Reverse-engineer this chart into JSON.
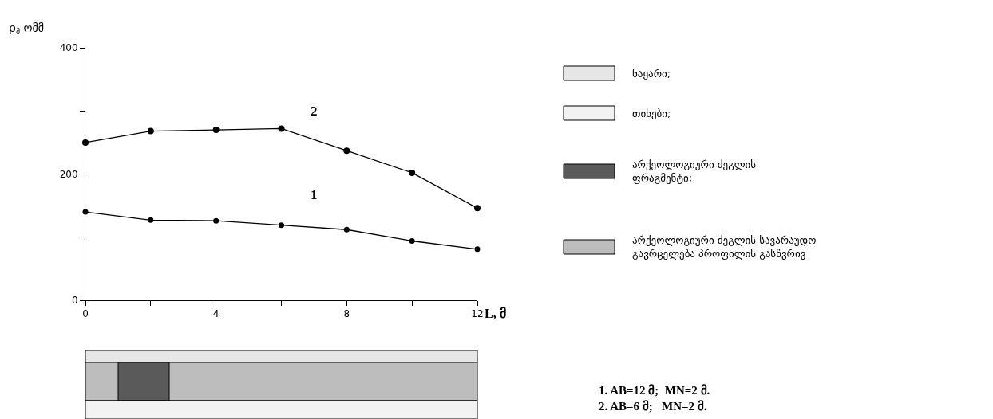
{
  "chart_data": {
    "type": "line",
    "ylabel": "ρ$_{მ}$ ომმ",
    "xlabel": "L, მ",
    "x": [
      0,
      2,
      4,
      6,
      8,
      10,
      12
    ],
    "series": [
      {
        "name": "1",
        "color": "#000000",
        "values": [
          140,
          127,
          126,
          119,
          112,
          94,
          81
        ]
      },
      {
        "name": "2",
        "color": "#000000",
        "values": [
          250,
          268,
          270,
          272,
          237,
          202,
          146
        ]
      }
    ],
    "xlim": [
      0,
      12
    ],
    "xticks": [
      0,
      {
        "value": 2,
        "label": null
      },
      4,
      {
        "value": 6,
        "label": null
      },
      8,
      {
        "value": 10,
        "label": null
      },
      12
    ],
    "ylim": [
      0,
      400
    ],
    "yticks": [
      0,
      {
        "value": 100,
        "label": null
      },
      200,
      {
        "value": 300,
        "label": null
      },
      400
    ],
    "marker": "circle",
    "line_style": "solid",
    "legend": false,
    "annotations": [
      "ნაყარი;",
      "თიხები;",
      "არქეოლოგიური ძეგლის ფრაგმენტი;",
      "არქეოლოგიური ძეგლის სავარაუდო გავრცელება პროფილის გასწვრივ",
      "1. AB=12 მ;  MN=2 მ.",
      "2. AB=6 მ;   MN=2 მ."
    ]
  }
}
